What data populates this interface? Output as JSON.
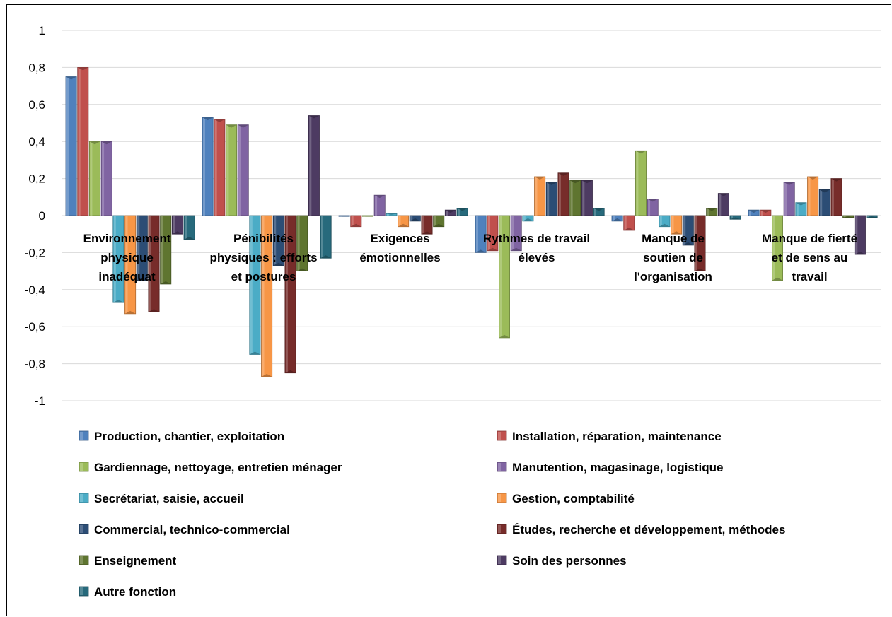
{
  "chart_data": {
    "type": "bar",
    "title": "",
    "xlabel": "",
    "ylabel": "",
    "ylim": [
      -1,
      1
    ],
    "ytick_step": 0.2,
    "ytick_labels": [
      "1",
      "0,8",
      "0,6",
      "0,4",
      "0,2",
      "0",
      "-0,2",
      "-0,4",
      "-0,6",
      "-0,8",
      "-1"
    ],
    "grid": true,
    "legend_position": "bottom, two columns",
    "categories": [
      [
        "Environnement",
        "physique",
        "inadéquat"
      ],
      [
        "Pénibilités",
        "physiques : efforts",
        "et postures"
      ],
      [
        "Exigences",
        "émotionnelles"
      ],
      [
        "Rythmes de travail",
        "élevés"
      ],
      [
        "Manque de",
        "soutien de",
        "l'organisation"
      ],
      [
        "Manque de fierté",
        "et de sens au",
        "travail"
      ]
    ],
    "series": [
      {
        "name": "Production, chantier, exploitation",
        "color": "#4F81BD",
        "values": [
          0.75,
          0.53,
          0.0,
          -0.2,
          -0.03,
          0.03
        ]
      },
      {
        "name": "Installation, réparation, maintenance",
        "color": "#C0504D",
        "values": [
          0.8,
          0.52,
          -0.06,
          -0.19,
          -0.08,
          0.03
        ]
      },
      {
        "name": "Gardiennage, nettoyage, entretien ménager",
        "color": "#9BBB59",
        "values": [
          0.4,
          0.49,
          0.0,
          -0.66,
          0.35,
          -0.35
        ]
      },
      {
        "name": "Manutention, magasinage, logistique",
        "color": "#8064A2",
        "values": [
          0.4,
          0.49,
          0.11,
          -0.19,
          0.09,
          0.18
        ]
      },
      {
        "name": "Secrétariat, saisie, accueil",
        "color": "#4BACC6",
        "values": [
          -0.47,
          -0.75,
          0.01,
          -0.03,
          -0.06,
          0.07
        ]
      },
      {
        "name": "Gestion, comptabilité",
        "color": "#F79646",
        "values": [
          -0.53,
          -0.87,
          -0.06,
          0.21,
          -0.1,
          0.21
        ]
      },
      {
        "name": "Commercial, technico-commercial",
        "color": "#2C4D75",
        "values": [
          -0.35,
          -0.27,
          -0.03,
          0.18,
          -0.16,
          0.14
        ]
      },
      {
        "name": "Études, recherche et développement, méthodes",
        "color": "#772C2A",
        "values": [
          -0.52,
          -0.85,
          -0.1,
          0.23,
          -0.3,
          0.2
        ]
      },
      {
        "name": "Enseignement",
        "color": "#5F7530",
        "values": [
          -0.37,
          -0.3,
          -0.06,
          0.19,
          0.04,
          -0.01
        ]
      },
      {
        "name": "Soin des personnes",
        "color": "#4D3B62",
        "values": [
          -0.1,
          0.54,
          0.03,
          0.19,
          0.12,
          -0.21
        ]
      },
      {
        "name": "Autre fonction",
        "color": "#276A7C",
        "values": [
          -0.13,
          -0.23,
          0.04,
          0.04,
          -0.02,
          -0.01
        ]
      }
    ]
  }
}
